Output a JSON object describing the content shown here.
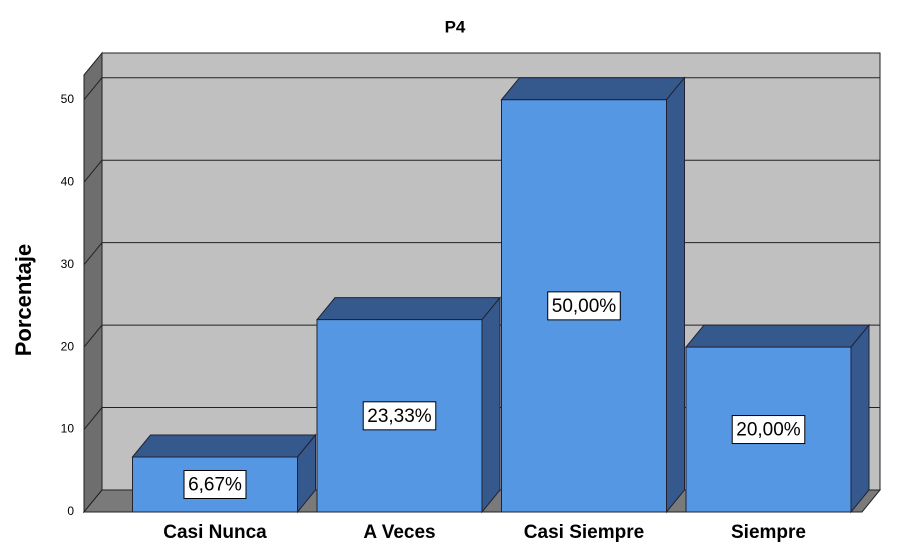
{
  "chart_data": {
    "type": "bar3d",
    "title": "P4",
    "y_label": "Porcentaje",
    "categories": [
      "Casi Nunca",
      "A Veces",
      "Casi Siempre",
      "Siempre"
    ],
    "values": [
      6.67,
      23.33,
      50,
      20
    ],
    "value_labels": [
      "6,67%",
      "23,33%",
      "50,00%",
      "20,00%"
    ],
    "color": "#5597e3",
    "ylim": [
      0,
      53
    ],
    "yticks": [
      0,
      10,
      20,
      30,
      40,
      50
    ],
    "grid": true
  }
}
